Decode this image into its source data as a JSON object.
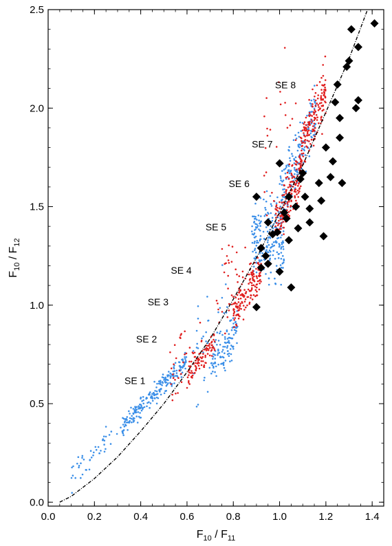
{
  "chart_data": {
    "type": "scatter",
    "xlabel": "F",
    "xlabel_sub_a": "10",
    "xlabel_sep": " / F",
    "xlabel_sub_b": "11",
    "ylabel": "F",
    "ylabel_sub_a": "10",
    "ylabel_sep": " / F",
    "ylabel_sub_b": "12",
    "xlim": [
      0.0,
      1.45
    ],
    "ylim": [
      -0.02,
      2.5
    ],
    "xticks": [
      0.0,
      0.2,
      0.4,
      0.6,
      0.8,
      1.0,
      1.2,
      1.4
    ],
    "xtick_labels": [
      "0.0",
      "0.2",
      "0.4",
      "0.6",
      "0.8",
      "1.0",
      "1.2",
      "1.4"
    ],
    "yticks": [
      0.0,
      0.5,
      1.0,
      1.5,
      2.0,
      2.5
    ],
    "ytick_labels": [
      "0.0",
      "0.5",
      "1.0",
      "1.5",
      "2.0",
      "2.5"
    ],
    "grid": false,
    "legend": "none",
    "colors": {
      "blue": "#3b8fe8",
      "red": "#e01e1e",
      "black": "#000000"
    },
    "annotations": [
      {
        "text": "SE 1",
        "x": 0.33,
        "y": 0.6
      },
      {
        "text": "SE 2",
        "x": 0.38,
        "y": 0.81
      },
      {
        "text": "SE 3",
        "x": 0.43,
        "y": 1.0
      },
      {
        "text": "SE 4",
        "x": 0.53,
        "y": 1.16
      },
      {
        "text": "SE 5",
        "x": 0.68,
        "y": 1.38
      },
      {
        "text": "SE 6",
        "x": 0.78,
        "y": 1.6
      },
      {
        "text": "SE 7",
        "x": 0.88,
        "y": 1.8
      },
      {
        "text": "SE 8",
        "x": 0.98,
        "y": 2.1
      }
    ],
    "series": [
      {
        "color": "blue",
        "marker": "dot",
        "clusters": [
          {
            "x_min": 0.08,
            "x_max": 0.32,
            "center_slope": 1.22,
            "center_intercept": 0.0,
            "spread": 0.035,
            "count": 45
          },
          {
            "x_min": 0.32,
            "x_max": 0.6,
            "center_slope": 1.2,
            "center_intercept": 0.0,
            "spread": 0.025,
            "count": 220
          },
          {
            "x_min": 0.7,
            "x_max": 0.82,
            "center_slope": 1.5,
            "center_intercept": -0.35,
            "spread": 0.05,
            "count": 110
          },
          {
            "x_min": 0.62,
            "x_max": 0.78,
            "center_slope": 1.6,
            "center_intercept": -0.28,
            "spread": 0.12,
            "count": 40
          },
          {
            "x_min": 0.88,
            "x_max": 1.02,
            "center_slope": 0.0,
            "center_intercept": 1.32,
            "spread": 0.1,
            "count": 220
          },
          {
            "x_min": 1.0,
            "x_max": 1.16,
            "center_slope": 3.0,
            "center_intercept": -1.5,
            "spread": 0.08,
            "count": 200
          }
        ]
      },
      {
        "color": "red",
        "marker": "dot",
        "clusters": [
          {
            "x_min": 0.6,
            "x_max": 0.72,
            "center_slope": 1.4,
            "center_intercept": -0.2,
            "spread": 0.035,
            "count": 90
          },
          {
            "x_min": 0.52,
            "x_max": 0.66,
            "center_slope": 1.5,
            "center_intercept": -0.15,
            "spread": 0.09,
            "count": 35
          },
          {
            "x_min": 0.8,
            "x_max": 0.92,
            "center_slope": 1.6,
            "center_intercept": -0.3,
            "spread": 0.05,
            "count": 150
          },
          {
            "x_min": 0.72,
            "x_max": 0.86,
            "center_slope": 1.7,
            "center_intercept": -0.25,
            "spread": 0.12,
            "count": 35
          },
          {
            "x_min": 0.98,
            "x_max": 1.1,
            "center_slope": 2.6,
            "center_intercept": -1.15,
            "spread": 0.07,
            "count": 160
          },
          {
            "x_min": 1.09,
            "x_max": 1.2,
            "center_slope": 3.0,
            "center_intercept": -1.5,
            "spread": 0.07,
            "count": 170
          },
          {
            "x_min": 0.93,
            "x_max": 1.08,
            "center_slope": 2.2,
            "center_intercept": -0.3,
            "spread": 0.15,
            "count": 25
          }
        ]
      },
      {
        "color": "black",
        "marker": "diamond",
        "points": [
          [
            0.9,
            1.55
          ],
          [
            0.92,
            1.29
          ],
          [
            0.92,
            1.19
          ],
          [
            0.9,
            0.99
          ],
          [
            0.94,
            1.25
          ],
          [
            0.95,
            1.42
          ],
          [
            0.95,
            1.21
          ],
          [
            0.97,
            1.36
          ],
          [
            0.99,
            1.37
          ],
          [
            1.0,
            1.72
          ],
          [
            1.0,
            1.17
          ],
          [
            1.02,
            1.47
          ],
          [
            1.03,
            1.44
          ],
          [
            1.04,
            1.55
          ],
          [
            1.04,
            1.33
          ],
          [
            1.05,
            1.09
          ],
          [
            1.07,
            1.5
          ],
          [
            1.08,
            1.39
          ],
          [
            1.09,
            1.64
          ],
          [
            1.1,
            1.67
          ],
          [
            1.11,
            1.55
          ],
          [
            1.13,
            1.49
          ],
          [
            1.13,
            1.42
          ],
          [
            1.17,
            1.62
          ],
          [
            1.18,
            1.53
          ],
          [
            1.19,
            1.35
          ],
          [
            1.2,
            1.8
          ],
          [
            1.22,
            1.65
          ],
          [
            1.23,
            1.73
          ],
          [
            1.24,
            2.03
          ],
          [
            1.25,
            2.12
          ],
          [
            1.26,
            1.95
          ],
          [
            1.26,
            1.85
          ],
          [
            1.27,
            1.62
          ],
          [
            1.29,
            2.21
          ],
          [
            1.3,
            2.24
          ],
          [
            1.31,
            2.4
          ],
          [
            1.33,
            2.0
          ],
          [
            1.34,
            2.31
          ],
          [
            1.34,
            2.04
          ],
          [
            1.41,
            2.43
          ]
        ]
      },
      {
        "color": "black",
        "marker": "dash-dot-line",
        "points": [
          [
            0.05,
            0.0
          ],
          [
            0.1,
            0.03
          ],
          [
            0.2,
            0.12
          ],
          [
            0.3,
            0.23
          ],
          [
            0.4,
            0.36
          ],
          [
            0.5,
            0.5
          ],
          [
            0.6,
            0.66
          ],
          [
            0.7,
            0.83
          ],
          [
            0.8,
            1.03
          ],
          [
            0.9,
            1.24
          ],
          [
            1.0,
            1.47
          ],
          [
            1.1,
            1.71
          ],
          [
            1.2,
            1.98
          ],
          [
            1.3,
            2.25
          ],
          [
            1.38,
            2.5
          ]
        ]
      }
    ]
  }
}
